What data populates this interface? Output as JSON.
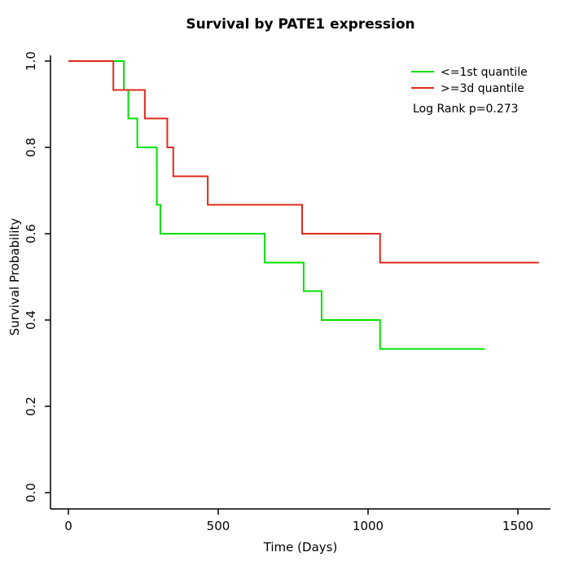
{
  "chart_data": {
    "type": "line",
    "subtype": "kaplan-meier-step",
    "title": "Survival by PATE1 expression",
    "xlabel": "Time (Days)",
    "ylabel": "Survival Probability",
    "xlim": [
      0,
      1700
    ],
    "ylim": [
      0.0,
      1.0
    ],
    "x_ticks": [
      0,
      500,
      1000,
      1500
    ],
    "y_ticks": [
      0.0,
      0.2,
      0.4,
      0.6,
      0.8,
      1.0
    ],
    "grid": false,
    "legend_position": "top-right",
    "annotation": "Log Rank p=0.273",
    "axis_color": "#000000",
    "background": "#ffffff",
    "series": [
      {
        "name": "<=1st quantile",
        "color": "#00e000",
        "steps": [
          [
            0,
            1.0
          ],
          [
            185,
            0.933
          ],
          [
            200,
            0.867
          ],
          [
            230,
            0.8
          ],
          [
            295,
            0.667
          ],
          [
            307,
            0.6
          ],
          [
            655,
            0.533
          ],
          [
            785,
            0.467
          ],
          [
            845,
            0.4
          ],
          [
            1040,
            0.333
          ]
        ],
        "end_time": 1390
      },
      {
        "name": ">=3d quantile",
        "color": "#dd2b1c",
        "steps": [
          [
            0,
            1.0
          ],
          [
            150,
            0.933
          ],
          [
            255,
            0.867
          ],
          [
            330,
            0.8
          ],
          [
            350,
            0.733
          ],
          [
            465,
            0.667
          ],
          [
            780,
            0.6
          ],
          [
            1040,
            0.533
          ]
        ],
        "end_time": 1570
      }
    ]
  }
}
